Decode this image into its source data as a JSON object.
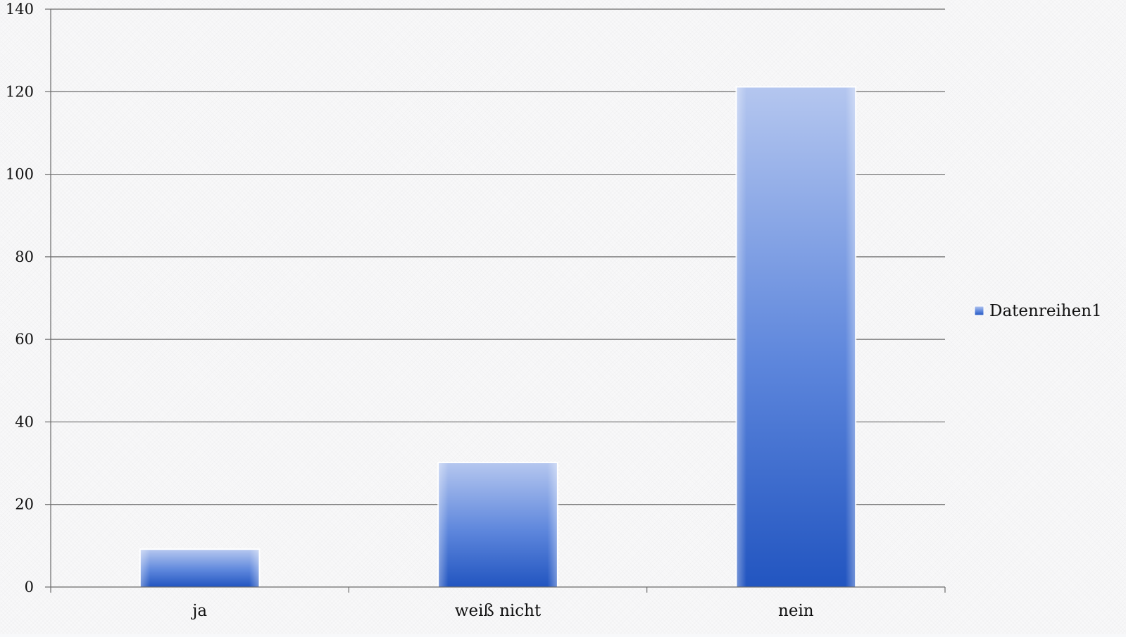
{
  "chart_data": {
    "type": "bar",
    "categories": [
      "ja",
      "weiß nicht",
      "nein"
    ],
    "series": [
      {
        "name": "Datenreihen1",
        "values": [
          9,
          30,
          121
        ]
      }
    ],
    "ylim": [
      0,
      140
    ],
    "yticks": [
      0,
      20,
      40,
      60,
      80,
      100,
      120,
      140
    ],
    "ytick_labels": [
      "0",
      "20",
      "40",
      "60",
      "80",
      "100",
      "120",
      "140"
    ],
    "grid": true,
    "legend_position": "right",
    "colors": {
      "bar_top": "#b4c6ef",
      "bar_bottom": "#2255c0",
      "grid": "#6b6b6b",
      "axis": "#6b6b6b"
    }
  }
}
